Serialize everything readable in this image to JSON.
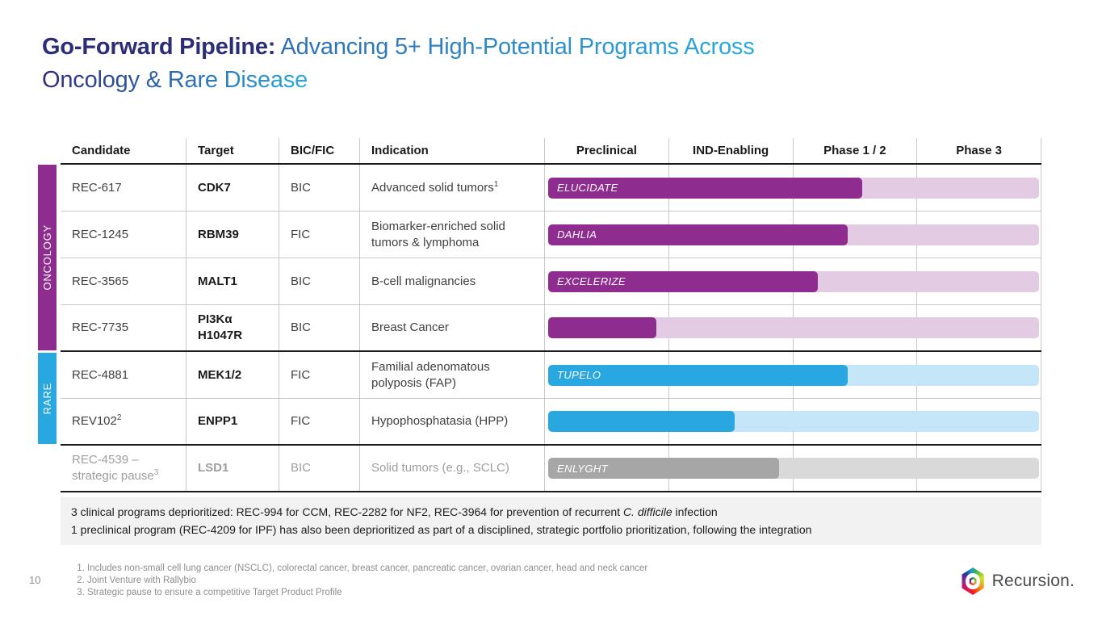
{
  "slide": {
    "title_bold": "Go-Forward Pipeline:",
    "title_rest": "Advancing 5+ High-Potential Programs Across",
    "title_line2": "Oncology & Rare Disease",
    "page_number": "10"
  },
  "colors": {
    "title_navy": "#2b2e77",
    "title_cyan": "#29a9e0",
    "oncology": "#8f2c90",
    "oncology_light": "#e3cbe4",
    "rare": "#29a7e0",
    "rare_light": "#c5e5f8",
    "paused": "#a6a6a6",
    "paused_light": "#d9d9d9",
    "callout_bg": "#f2f2f2"
  },
  "table": {
    "headers": [
      "Candidate",
      "Target",
      "BIC/FIC",
      "Indication",
      "Preclinical",
      "IND-Enabling",
      "Phase 1 / 2",
      "Phase 3"
    ],
    "group_labels": {
      "oncology": "ONCOLOGY",
      "rare": "RARE"
    },
    "rows": [
      {
        "candidate": "REC-617",
        "candidate_sup": "",
        "target": "CDK7",
        "bic_fic": "BIC",
        "indication": "Advanced solid tumors",
        "indication_sup": "1",
        "bar_label": "ELUCIDATE",
        "progress_pct": 64,
        "theme": "oncology",
        "group_end": false
      },
      {
        "candidate": "REC-1245",
        "candidate_sup": "",
        "target": "RBM39",
        "bic_fic": "FIC",
        "indication": "Biomarker-enriched solid tumors & lymphoma",
        "indication_sup": "",
        "bar_label": "DAHLIA",
        "progress_pct": 61,
        "theme": "oncology",
        "group_end": false
      },
      {
        "candidate": "REC-3565",
        "candidate_sup": "",
        "target": "MALT1",
        "bic_fic": "BIC",
        "indication": "B-cell malignancies",
        "indication_sup": "",
        "bar_label": "EXCELERIZE",
        "progress_pct": 55,
        "theme": "oncology",
        "group_end": false
      },
      {
        "candidate": "REC-7735",
        "candidate_sup": "",
        "target": "PI3Kα\nH1047R",
        "bic_fic": "BIC",
        "indication": "Breast Cancer",
        "indication_sup": "",
        "bar_label": "",
        "progress_pct": 22,
        "theme": "oncology",
        "group_end": true
      },
      {
        "candidate": "REC-4881",
        "candidate_sup": "",
        "target": "MEK1/2",
        "bic_fic": "FIC",
        "indication": "Familial adenomatous polyposis (FAP)",
        "indication_sup": "",
        "bar_label": "TUPELO",
        "progress_pct": 61,
        "theme": "rare",
        "group_end": false
      },
      {
        "candidate": "REV102",
        "candidate_sup": "2",
        "target": "ENPP1",
        "bic_fic": "FIC",
        "indication": "Hypophosphatasia (HPP)",
        "indication_sup": "",
        "bar_label": "",
        "progress_pct": 38,
        "theme": "rare",
        "group_end": true
      },
      {
        "candidate": "REC-4539 – strategic pause",
        "candidate_sup": "3",
        "target": "LSD1",
        "bic_fic": "BIC",
        "indication": "Solid tumors (e.g., SCLC)",
        "indication_sup": "",
        "bar_label": "ENLYGHT",
        "progress_pct": 47,
        "theme": "paused",
        "group_end": true
      }
    ]
  },
  "callout": {
    "line1_pre": "3 clinical programs deprioritized: REC-994 for CCM, REC-2282 for NF2, REC-3964 for prevention of recurrent ",
    "line1_italic": "C. difficile",
    "line1_post": " infection",
    "line2": "1 preclinical program (REC-4209 for IPF) has also been deprioritized as part of a disciplined, strategic portfolio prioritization, following the integration"
  },
  "footnotes": [
    "Includes non-small cell lung cancer (NSCLC), colorectal cancer, breast cancer, pancreatic cancer, ovarian cancer, head and neck cancer",
    "Joint Venture with Rallybio",
    "Strategic pause to ensure a competitive Target Product Profile"
  ],
  "logo": {
    "name": "Recursion",
    "text": "Recursion."
  }
}
